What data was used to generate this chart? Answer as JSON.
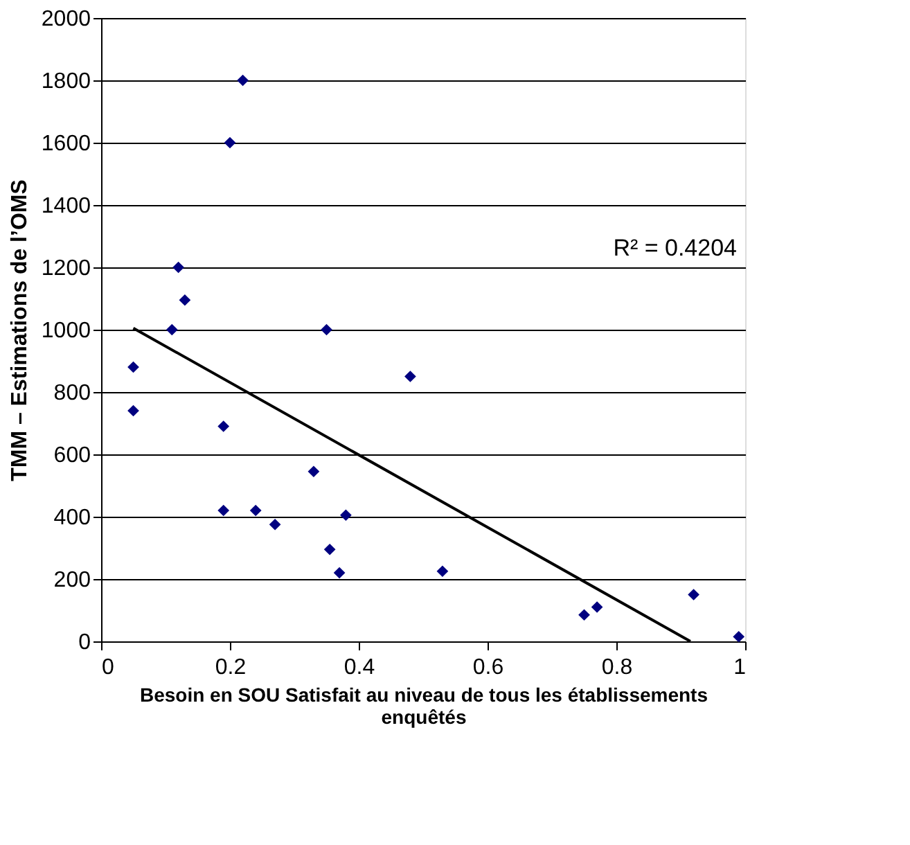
{
  "chart_data": {
    "type": "scatter",
    "xlabel": "Besoin en SOU Satisfait au niveau de tous les établissements enquêtés",
    "ylabel": "TMM – Estimations de l’OMS",
    "annotations": [
      "R² = 0.4204"
    ],
    "xlim": [
      0,
      1
    ],
    "xticks": [
      0,
      0.2,
      0.4,
      0.6,
      0.8,
      1
    ],
    "ylim": [
      0,
      2000
    ],
    "yticks": [
      0,
      200,
      400,
      600,
      800,
      1000,
      1200,
      1400,
      1600,
      1800,
      2000
    ],
    "grid": "y",
    "legend": false,
    "series": [
      {
        "marker": "diamond",
        "color": "#000080",
        "x": [
          0.05,
          0.05,
          0.11,
          0.12,
          0.13,
          0.19,
          0.19,
          0.2,
          0.22,
          0.24,
          0.27,
          0.33,
          0.35,
          0.355,
          0.37,
          0.38,
          0.48,
          0.53,
          0.75,
          0.77,
          0.92,
          0.99
        ],
        "values": [
          880,
          740,
          1000,
          1200,
          1095,
          690,
          420,
          1600,
          1800,
          420,
          375,
          545,
          1000,
          295,
          220,
          405,
          850,
          225,
          85,
          110,
          150,
          15
        ]
      },
      {
        "type": "line",
        "marker": "none",
        "color": "#000000",
        "x": [
          0.05,
          0.915
        ],
        "values": [
          1005,
          0
        ]
      }
    ]
  }
}
